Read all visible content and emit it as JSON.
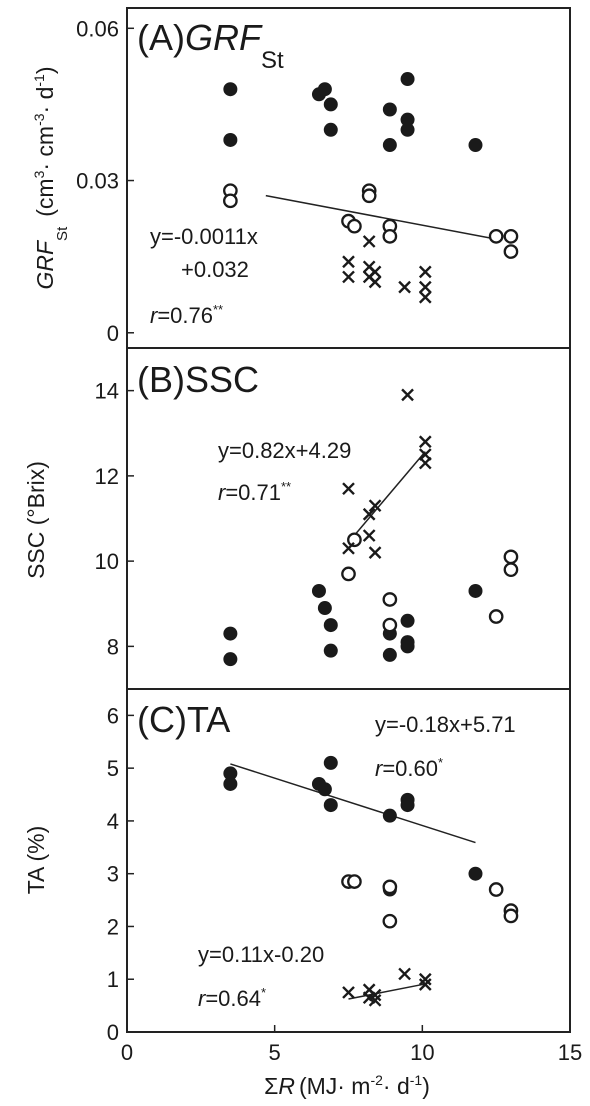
{
  "chart_data": [
    {
      "panel_label": "(A)",
      "panel_title_italic": "GRF",
      "panel_title_sub": "St",
      "type": "scatter",
      "ylabel_italic": "GRF",
      "ylabel_sub": "St",
      "ylabel_unit_parts": [
        "(cm",
        "3",
        "· cm",
        "-3",
        "· d",
        "-1",
        ")"
      ],
      "ylim": [
        -0.003,
        0.064
      ],
      "yticks": [
        0,
        0.03,
        0.06
      ],
      "ytick_labels": [
        "0",
        "0.03",
        "0.06"
      ],
      "series": [
        {
          "marker": "filled-circle",
          "points": [
            [
              3.5,
              0.048
            ],
            [
              3.5,
              0.038
            ],
            [
              6.5,
              0.047
            ],
            [
              6.7,
              0.048
            ],
            [
              6.9,
              0.045
            ],
            [
              6.9,
              0.04
            ],
            [
              8.9,
              0.044
            ],
            [
              8.9,
              0.037
            ],
            [
              9.5,
              0.05
            ],
            [
              9.5,
              0.042
            ],
            [
              9.5,
              0.04
            ],
            [
              11.8,
              0.037
            ]
          ]
        },
        {
          "marker": "open-circle",
          "points": [
            [
              3.5,
              0.028
            ],
            [
              3.5,
              0.026
            ],
            [
              7.5,
              0.022
            ],
            [
              7.7,
              0.021
            ],
            [
              8.2,
              0.028
            ],
            [
              8.2,
              0.027
            ],
            [
              8.9,
              0.021
            ],
            [
              8.9,
              0.019
            ],
            [
              12.5,
              0.019
            ],
            [
              13,
              0.019
            ],
            [
              13,
              0.016
            ]
          ]
        },
        {
          "marker": "cross",
          "points": [
            [
              7.5,
              0.014
            ],
            [
              7.5,
              0.011
            ],
            [
              8.2,
              0.018
            ],
            [
              8.2,
              0.013
            ],
            [
              8.2,
              0.011
            ],
            [
              8.4,
              0.012
            ],
            [
              8.4,
              0.01
            ],
            [
              9.4,
              0.009
            ],
            [
              10.1,
              0.012
            ],
            [
              10.1,
              0.009
            ],
            [
              10.1,
              0.007
            ]
          ]
        }
      ],
      "fits": [
        {
          "x": [
            4.7,
            12.7
          ],
          "y": [
            0.02703,
            0.01823
          ]
        }
      ],
      "annotations": [
        {
          "lines": [
            "y=-0.0011x",
            "+0.032"
          ]
        },
        {
          "r_label": "r",
          "r_value": "=0.76",
          "r_stars": "**"
        }
      ]
    },
    {
      "panel_label": "(B)SSC",
      "type": "scatter",
      "ylabel": "SSC (°Brix)",
      "ylim": [
        7.0,
        15.0
      ],
      "yticks": [
        8,
        10,
        12,
        14
      ],
      "ytick_labels": [
        "8",
        "10",
        "12",
        "14"
      ],
      "series": [
        {
          "marker": "filled-circle",
          "points": [
            [
              3.5,
              8.3
            ],
            [
              3.5,
              7.7
            ],
            [
              6.5,
              9.3
            ],
            [
              6.7,
              8.9
            ],
            [
              6.9,
              8.5
            ],
            [
              6.9,
              7.9
            ],
            [
              8.9,
              8.3
            ],
            [
              8.9,
              7.8
            ],
            [
              9.5,
              8.6
            ],
            [
              9.5,
              8.1
            ],
            [
              9.5,
              8.0
            ],
            [
              11.8,
              9.3
            ]
          ]
        },
        {
          "marker": "open-circle",
          "points": [
            [
              7.5,
              9.7
            ],
            [
              7.7,
              10.5
            ],
            [
              8.9,
              9.1
            ],
            [
              8.9,
              8.5
            ],
            [
              12.5,
              8.7
            ],
            [
              13,
              10.1
            ],
            [
              13,
              9.8
            ]
          ]
        },
        {
          "marker": "cross",
          "points": [
            [
              7.5,
              11.7
            ],
            [
              7.5,
              10.3
            ],
            [
              8.2,
              11.1
            ],
            [
              8.2,
              10.6
            ],
            [
              8.4,
              11.3
            ],
            [
              8.4,
              10.2
            ],
            [
              9.5,
              13.9
            ],
            [
              10.1,
              12.8
            ],
            [
              10.1,
              12.5
            ],
            [
              10.1,
              12.3
            ]
          ]
        }
      ],
      "fits": [
        {
          "x": [
            7.5,
            10.1
          ],
          "y": [
            10.44,
            12.57
          ]
        }
      ],
      "annotations": [
        {
          "lines": [
            "y=0.82x+4.29"
          ]
        },
        {
          "r_label": "r",
          "r_value": "=0.71",
          "r_stars": "**"
        }
      ]
    },
    {
      "panel_label": "(C)TA",
      "type": "scatter",
      "ylabel": "TA (%)",
      "ylim": [
        0,
        6.5
      ],
      "yticks": [
        0,
        1,
        2,
        3,
        4,
        5,
        6
      ],
      "ytick_labels": [
        "0",
        "1",
        "2",
        "3",
        "4",
        "5",
        "6"
      ],
      "xlim": [
        0,
        15
      ],
      "xticks": [
        0,
        5,
        10,
        15
      ],
      "xtick_labels": [
        "0",
        "5",
        "10",
        "15"
      ],
      "xlabel_sigma": "Σ",
      "xlabel_italic": "R",
      "xlabel_unit_parts": [
        "(MJ· m",
        "-2",
        "· d",
        "-1",
        ")"
      ],
      "series": [
        {
          "marker": "filled-circle",
          "points": [
            [
              3.5,
              4.9
            ],
            [
              3.5,
              4.7
            ],
            [
              6.5,
              4.7
            ],
            [
              6.7,
              4.6
            ],
            [
              6.9,
              5.1
            ],
            [
              6.9,
              4.3
            ],
            [
              8.9,
              4.1
            ],
            [
              8.9,
              2.7
            ],
            [
              9.5,
              4.4
            ],
            [
              9.5,
              4.3
            ],
            [
              11.8,
              3.0
            ]
          ]
        },
        {
          "marker": "open-circle",
          "points": [
            [
              7.5,
              2.85
            ],
            [
              7.7,
              2.85
            ],
            [
              8.9,
              2.75
            ],
            [
              8.9,
              2.1
            ],
            [
              12.5,
              2.7
            ],
            [
              13,
              2.3
            ],
            [
              13,
              2.2
            ]
          ]
        },
        {
          "marker": "cross",
          "points": [
            [
              7.5,
              0.75
            ],
            [
              8.2,
              0.65
            ],
            [
              8.2,
              0.8
            ],
            [
              8.4,
              0.7
            ],
            [
              8.4,
              0.6
            ],
            [
              9.4,
              1.1
            ],
            [
              10.1,
              1.0
            ],
            [
              10.1,
              0.9
            ]
          ]
        }
      ],
      "fits": [
        {
          "x": [
            3.5,
            11.8
          ],
          "y": [
            5.08,
            3.59
          ]
        },
        {
          "x": [
            7.5,
            10.1
          ],
          "y": [
            0.625,
            0.911
          ]
        }
      ],
      "annotations": [
        {
          "lines": [
            "y=-0.18x+5.71"
          ]
        },
        {
          "r_label": "r",
          "r_value": "=0.60",
          "r_stars": "*"
        },
        {
          "lines": [
            "y=0.11x-0.20"
          ]
        },
        {
          "r_label": "r",
          "r_value": "=0.64",
          "r_stars": "*"
        }
      ]
    }
  ]
}
